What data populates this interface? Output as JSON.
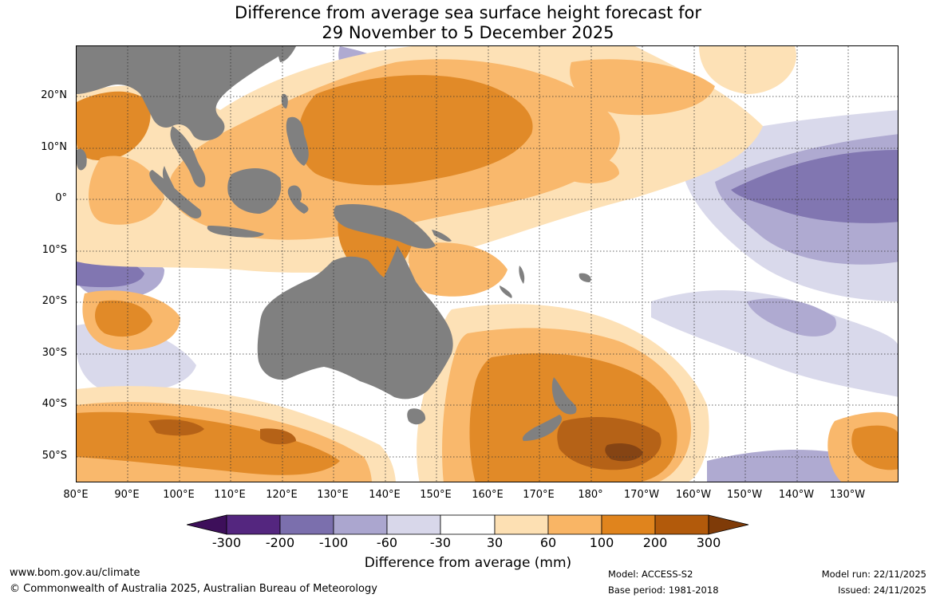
{
  "title": {
    "line1": "Difference from average sea surface height forecast for",
    "line2": "29 November to 5 December 2025"
  },
  "map": {
    "land_color": "#808080",
    "grid_style": "dotted",
    "lat_labels": [
      "20°N",
      "10°N",
      "0°",
      "10°S",
      "20°S",
      "30°S",
      "40°S",
      "50°S"
    ],
    "lon_labels": [
      "80°E",
      "90°E",
      "100°E",
      "110°E",
      "120°E",
      "130°E",
      "140°E",
      "150°E",
      "160°E",
      "170°E",
      "180°",
      "170°W",
      "160°W",
      "150°W",
      "140°W",
      "130°W"
    ]
  },
  "colorbar": {
    "ticks": [
      "-300",
      "-200",
      "-100",
      "-60",
      "-30",
      "30",
      "60",
      "100",
      "200",
      "300"
    ],
    "colors": {
      "below_neg300": "#3d0f5a",
      "neg300_neg200": "#54267f",
      "neg200_neg100": "#7b6fad",
      "neg100_neg60": "#aba6cf",
      "neg60_neg30": "#d8d7ea",
      "neg30_30": "#ffffff",
      "pos30_60": "#fde0b3",
      "pos60_100": "#f9b565",
      "pos100_200": "#e0841d",
      "pos200_300": "#b25a0b",
      "above_300": "#7f3b08"
    },
    "label": "Difference from average (mm)"
  },
  "footer": {
    "url": "www.bom.gov.au/climate",
    "copyright": "© Commonwealth of Australia 2025, Australian Bureau of Meteorology",
    "model": "Model: ACCESS-S2",
    "base_period": "Base period: 1981-2018",
    "model_run": "Model run: 22/11/2025",
    "issued": "Issued: 24/11/2025"
  }
}
